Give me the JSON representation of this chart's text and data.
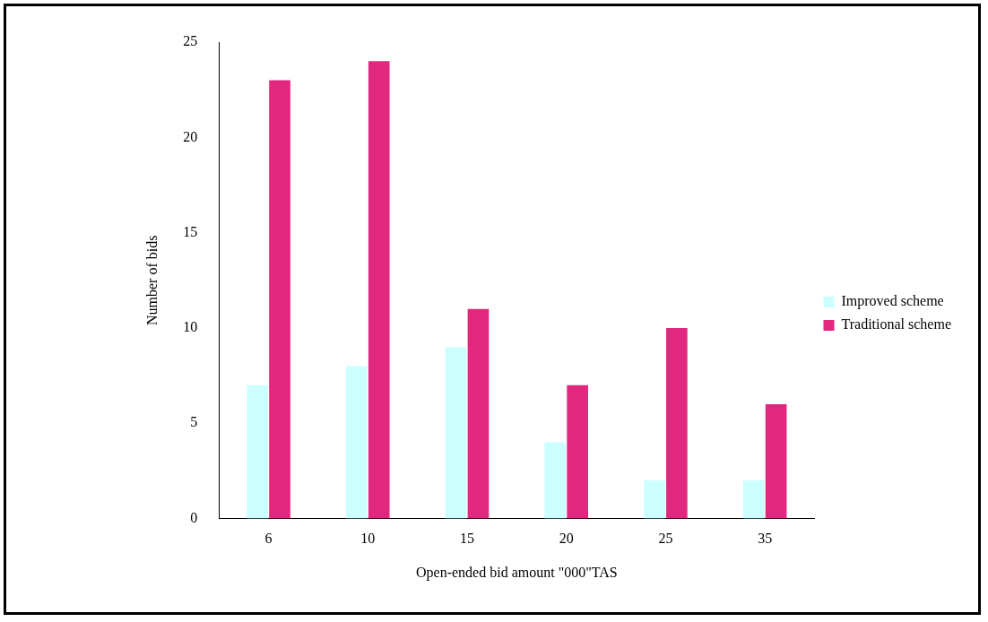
{
  "chart_data": {
    "type": "bar",
    "xlabel": "Open-ended bid amount \"000\"TAS",
    "ylabel": "Number of bids",
    "categories": [
      "6",
      "10",
      "15",
      "20",
      "25",
      "35"
    ],
    "series": [
      {
        "name": "Improved scheme",
        "color": "#ccffff",
        "values": [
          7,
          8,
          9,
          4,
          2,
          2
        ]
      },
      {
        "name": "Traditional scheme",
        "color": "#e0287e",
        "values": [
          23,
          24,
          11,
          7,
          10,
          6
        ]
      }
    ],
    "ylim": [
      0,
      25
    ],
    "yticks": [
      0,
      5,
      10,
      15,
      20,
      25
    ],
    "grid": false,
    "legend": "right"
  }
}
